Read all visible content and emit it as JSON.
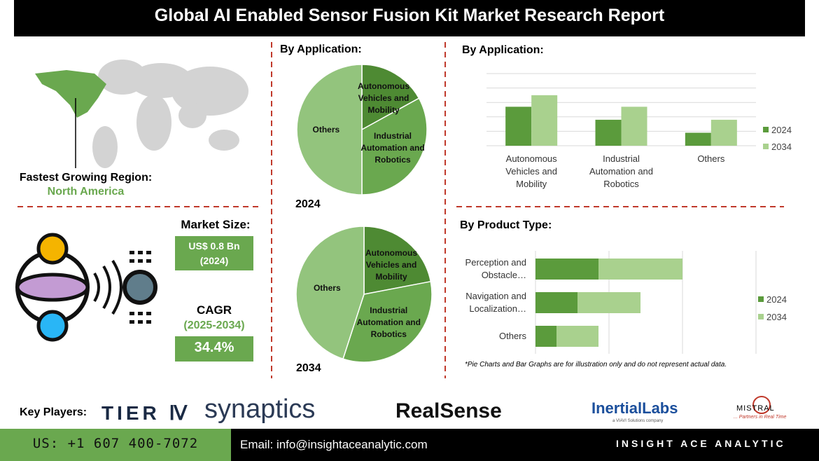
{
  "title": "Global AI Enabled Sensor Fusion Kit Market Research Report",
  "region": {
    "label": "Fastest Growing Region:",
    "value": "North America"
  },
  "market": {
    "size_label": "Market Size:",
    "size_value": "US$ 0.8 Bn",
    "size_year": "(2024)",
    "cagr_label": "CAGR",
    "cagr_period": "(2025-2034)",
    "cagr_value": "34.4%"
  },
  "key_players": {
    "label": "Key Players:",
    "logos": [
      "TIER Ⅳ",
      "synaptics",
      "RealSense",
      "InertialLabs",
      "a VIAVI Solutions company",
      "MISTRAL",
      "... Partners in Real Time"
    ]
  },
  "note": "*Pie Charts and Bar Graphs are for illustration only and do not represent actual data.",
  "footer": {
    "phone": "US: +1 607 400-7072",
    "email": "Email: info@insightaceanalytic.com",
    "brand": "INSIGHT ACE ANALYTIC"
  },
  "chart_data": [
    {
      "type": "pie",
      "title": "By Application:",
      "subtitle": "2024",
      "categories": [
        "Autonomous Vehicles and Mobility",
        "Industrial Automation and Robotics",
        "Others"
      ],
      "values": [
        17,
        33,
        50
      ],
      "colors": [
        "#4e8a33",
        "#6aa84f",
        "#93c47d"
      ]
    },
    {
      "type": "pie",
      "subtitle": "2034",
      "categories": [
        "Autonomous Vehicles and Mobility",
        "Industrial Automation and Robotics",
        "Others"
      ],
      "values": [
        22,
        33,
        45
      ],
      "colors": [
        "#4e8a33",
        "#6aa84f",
        "#93c47d"
      ]
    },
    {
      "type": "bar",
      "title": "By Application:",
      "categories": [
        "Autonomous Vehicles and Mobility",
        "Industrial Automation and Robotics",
        "Others"
      ],
      "series": [
        {
          "name": "2024",
          "color": "#5b9b3c",
          "values": [
            2.7,
            1.8,
            0.9
          ]
        },
        {
          "name": "2034",
          "color": "#a9d18e",
          "values": [
            3.5,
            2.7,
            1.8
          ]
        }
      ],
      "ylim": [
        0,
        5
      ],
      "gridlines": [
        0,
        1,
        2,
        3,
        4,
        5
      ],
      "grid": true,
      "legend": "right"
    },
    {
      "type": "hbar_stacked",
      "title": "By Product Type:",
      "categories": [
        "Perception and Obstacle…",
        "Navigation and Localization…",
        "Others"
      ],
      "series": [
        {
          "name": "2024",
          "color": "#5b9b3c",
          "values": [
            3,
            2,
            1
          ]
        },
        {
          "name": "2034",
          "color": "#a9d18e",
          "values": [
            4,
            3,
            2
          ]
        }
      ],
      "xlim": [
        0,
        10.5
      ],
      "gridlines": [
        0,
        3.5,
        7,
        10.5
      ],
      "grid": true,
      "legend": "right"
    }
  ]
}
